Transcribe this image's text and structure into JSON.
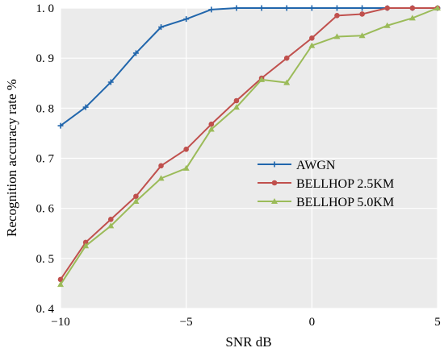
{
  "chart_data": {
    "type": "line",
    "title": "",
    "xlabel": "SNR  dB",
    "ylabel": "Recognition accuracy rate  %",
    "xlim": [
      -10,
      5
    ],
    "ylim": [
      0.4,
      1.0
    ],
    "xticks": [
      -10,
      -5,
      0,
      5
    ],
    "xtick_labels": [
      "−10",
      "−5",
      "0",
      "5"
    ],
    "yticks": [
      0.4,
      0.5,
      0.6,
      0.7,
      0.8,
      0.9,
      1.0
    ],
    "ytick_labels": [
      "0. 4",
      "0. 5",
      "0. 6",
      "0. 7",
      "0. 8",
      "0. 9",
      "1. 0"
    ],
    "grid": true,
    "legend_position": "center-right",
    "x": [
      -10,
      -9,
      -8,
      -7,
      -6,
      -5,
      -4,
      -3,
      -2,
      -1,
      0,
      1,
      2,
      3,
      4,
      5
    ],
    "series": [
      {
        "name": "AWGN",
        "color": "#2166ac",
        "marker": "plus",
        "values": [
          0.765,
          0.802,
          0.852,
          0.91,
          0.962,
          0.978,
          0.997,
          1.0,
          1.0,
          1.0,
          1.0,
          1.0,
          1.0,
          1.0,
          1.0,
          1.0
        ]
      },
      {
        "name": "BELLHOP 2.5KM",
        "color": "#c0504d",
        "marker": "circle",
        "values": [
          0.458,
          0.532,
          0.578,
          0.624,
          0.685,
          0.718,
          0.768,
          0.815,
          0.86,
          0.9,
          0.94,
          0.985,
          0.988,
          1.0,
          1.0,
          1.0
        ]
      },
      {
        "name": "BELLHOP 5.0KM",
        "color": "#9bbb59",
        "marker": "triangle",
        "values": [
          0.448,
          0.525,
          0.565,
          0.614,
          0.66,
          0.68,
          0.758,
          0.802,
          0.857,
          0.851,
          0.925,
          0.943,
          0.945,
          0.965,
          0.98,
          1.0
        ]
      }
    ]
  }
}
